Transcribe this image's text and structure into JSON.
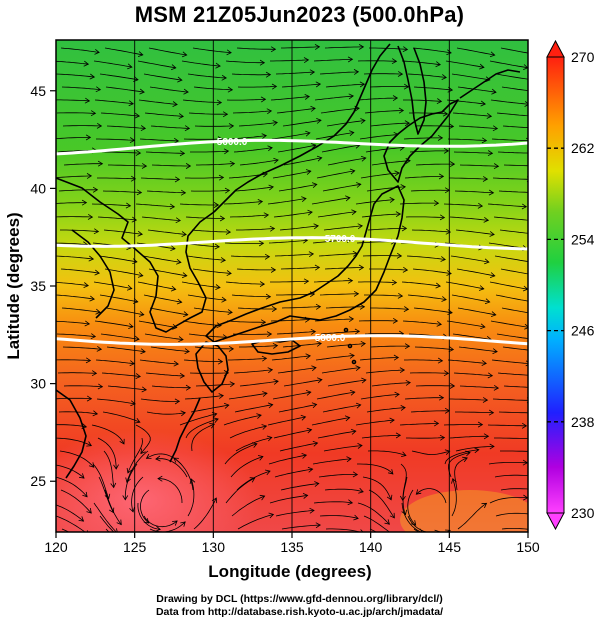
{
  "title": "MSM 21Z05Jun2023 (500.0hPa)",
  "xaxis": {
    "label": "Longitude (degrees)",
    "range": [
      120,
      150
    ],
    "ticks": [
      "120",
      "125",
      "130",
      "135",
      "140",
      "145",
      "150"
    ]
  },
  "yaxis": {
    "label": "Latitude  (degrees)",
    "range": [
      22.4,
      47.6
    ],
    "ticks": [
      "25",
      "30",
      "35",
      "40",
      "45"
    ]
  },
  "colorbar": {
    "range": [
      230,
      270
    ],
    "ticks": [
      "230",
      "238",
      "246",
      "254",
      "262",
      "270"
    ],
    "colors": [
      "#ff30ff",
      "#c000ff",
      "#3030ff",
      "#00a0ff",
      "#00e0e0",
      "#00e090",
      "#20d040",
      "#60d020",
      "#c8e000",
      "#ffe000",
      "#ffa000",
      "#ff6000",
      "#ff2000"
    ]
  },
  "contours": [
    {
      "label": "5880.0",
      "lat": 32.3
    },
    {
      "label": "5700.0",
      "lat": 37.3
    },
    {
      "label": "5600.0",
      "lat": 42.0
    }
  ],
  "colors": {
    "coastline": "#000000",
    "streamline": "#000000",
    "contour": "#ffffff"
  },
  "credits": {
    "line1": "Drawing by DCL (https://www.gfd-dennou.org/library/dcl/)",
    "line2": "Data from http://database.rish.kyoto-u.ac.jp/arch/jmadata/"
  }
}
